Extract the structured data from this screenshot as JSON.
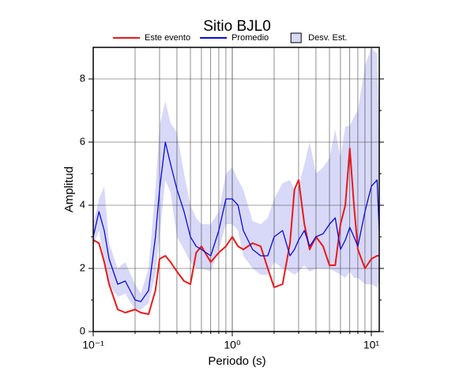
{
  "chart_data": {
    "type": "line",
    "title": "Sitio BJL0",
    "x_label": "Periodo (s)",
    "y_label": "Amplitud",
    "log_x": true,
    "grid": true,
    "xlim": [
      0.1,
      11.4
    ],
    "ylim": [
      0,
      9
    ],
    "xticks": [
      {
        "value": 0.1,
        "label": "10⁻¹"
      },
      {
        "value": 1,
        "label": "10⁰"
      },
      {
        "value": 10,
        "label": "10¹"
      }
    ],
    "xminor": [
      0.2,
      0.3,
      0.4,
      0.5,
      0.6,
      0.7,
      0.8,
      0.9,
      2,
      3,
      4,
      5,
      6,
      7,
      8,
      9
    ],
    "yticks": [
      0,
      2,
      4,
      6,
      8
    ],
    "yminor": [
      1,
      3,
      5,
      7
    ],
    "x": [
      0.1,
      0.11,
      0.12,
      0.13,
      0.15,
      0.17,
      0.2,
      0.22,
      0.25,
      0.28,
      0.3,
      0.33,
      0.36,
      0.4,
      0.45,
      0.5,
      0.55,
      0.6,
      0.7,
      0.8,
      0.9,
      1.0,
      1.1,
      1.2,
      1.4,
      1.6,
      1.8,
      2.0,
      2.3,
      2.6,
      2.8,
      3.0,
      3.3,
      3.6,
      4.0,
      4.5,
      5.0,
      5.5,
      6.0,
      6.5,
      7.0,
      7.5,
      8.0,
      9.0,
      10.0,
      11.0,
      11.4
    ],
    "series": [
      {
        "name": "Este evento",
        "color": "#e8191c",
        "values": [
          2.9,
          2.8,
          2.2,
          1.5,
          0.7,
          0.6,
          0.7,
          0.6,
          0.55,
          1.3,
          2.3,
          2.4,
          2.2,
          1.9,
          1.6,
          1.5,
          2.5,
          2.7,
          2.2,
          2.5,
          2.7,
          3.0,
          2.7,
          2.6,
          2.8,
          2.7,
          2.0,
          1.4,
          1.5,
          2.8,
          4.5,
          4.8,
          3.4,
          2.6,
          3.0,
          2.7,
          2.1,
          2.1,
          3.4,
          4.0,
          5.8,
          4.0,
          2.6,
          2.0,
          2.3,
          2.4,
          2.4
        ]
      },
      {
        "name": "Promedio",
        "color": "#0b0bd6",
        "values": [
          3.0,
          3.8,
          3.2,
          2.3,
          1.5,
          1.6,
          1.0,
          0.95,
          1.3,
          3.0,
          4.5,
          6.0,
          5.3,
          4.5,
          3.8,
          3.0,
          2.7,
          2.6,
          2.4,
          3.2,
          4.2,
          4.2,
          4.0,
          3.2,
          2.6,
          2.4,
          2.4,
          3.0,
          3.2,
          2.4,
          2.6,
          2.9,
          3.2,
          2.7,
          3.0,
          3.1,
          3.4,
          3.6,
          2.6,
          2.9,
          3.3,
          3.0,
          2.7,
          3.8,
          4.6,
          4.8,
          3.2
        ]
      }
    ],
    "band": {
      "name": "Desv. Est.",
      "color": "#d8d8f8",
      "upper": [
        3.4,
        4.2,
        4.6,
        2.8,
        2.0,
        2.2,
        1.5,
        1.2,
        2.0,
        4.5,
        6.5,
        7.3,
        6.6,
        6.3,
        5.0,
        4.0,
        3.6,
        3.4,
        3.4,
        3.8,
        5.0,
        5.2,
        4.8,
        4.5,
        3.5,
        3.4,
        3.6,
        4.2,
        4.7,
        4.8,
        4.5,
        4.6,
        5.3,
        6.0,
        5.0,
        5.2,
        5.5,
        6.4,
        5.5,
        6.5,
        6.5,
        6.8,
        7.0,
        8.4,
        9.0,
        8.8,
        6.0
      ],
      "lower": [
        2.7,
        3.2,
        2.2,
        1.5,
        1.1,
        1.2,
        0.7,
        0.7,
        0.9,
        1.8,
        3.0,
        4.8,
        4.4,
        3.0,
        2.6,
        2.2,
        2.0,
        2.0,
        1.9,
        2.6,
        3.4,
        3.4,
        3.2,
        2.4,
        2.0,
        1.8,
        1.8,
        2.2,
        2.0,
        1.9,
        1.8,
        1.9,
        2.1,
        1.9,
        2.0,
        2.0,
        2.0,
        1.9,
        1.8,
        1.7,
        1.9,
        1.7,
        1.7,
        1.5,
        1.5,
        1.4,
        1.6
      ]
    }
  }
}
